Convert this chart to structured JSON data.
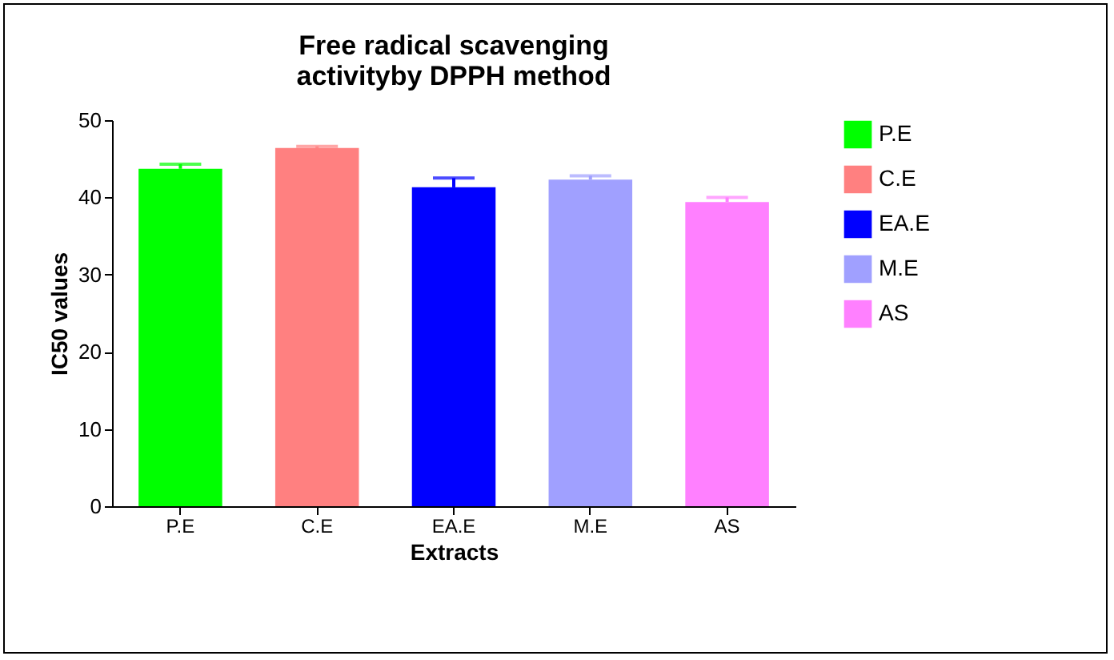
{
  "chart_data": {
    "type": "bar",
    "title": "Free radical scavenging\nactivityby DPPH method",
    "xlabel": "Extracts",
    "ylabel": "IC50 values",
    "categories": [
      "P.E",
      "C.E",
      "EA.E",
      "M.E",
      "AS"
    ],
    "series": [
      {
        "name": "P.E",
        "color": "#00ff00",
        "values": [
          43.7,
          null,
          null,
          null,
          null
        ],
        "errors": [
          0.6,
          null,
          null,
          null,
          null
        ]
      },
      {
        "name": "C.E",
        "color": "#ff8080",
        "values": [
          null,
          46.4,
          null,
          null,
          null
        ],
        "errors": [
          null,
          0.2,
          null,
          null,
          null
        ]
      },
      {
        "name": "EA.E",
        "color": "#0000ff",
        "values": [
          null,
          null,
          41.3,
          null,
          null
        ],
        "errors": [
          null,
          null,
          1.2,
          null,
          null
        ]
      },
      {
        "name": "M.E",
        "color": "#a0a0ff",
        "values": [
          null,
          null,
          null,
          42.3,
          null
        ],
        "errors": [
          null,
          null,
          null,
          0.5,
          null
        ]
      },
      {
        "name": "AS",
        "color": "#ff80ff",
        "values": [
          null,
          null,
          null,
          null,
          39.4
        ],
        "errors": [
          null,
          null,
          null,
          null,
          0.6
        ]
      }
    ],
    "ylim": [
      0,
      50
    ],
    "yticks": [
      0,
      10,
      20,
      30,
      40,
      50
    ],
    "grid": false,
    "legend": "right"
  }
}
